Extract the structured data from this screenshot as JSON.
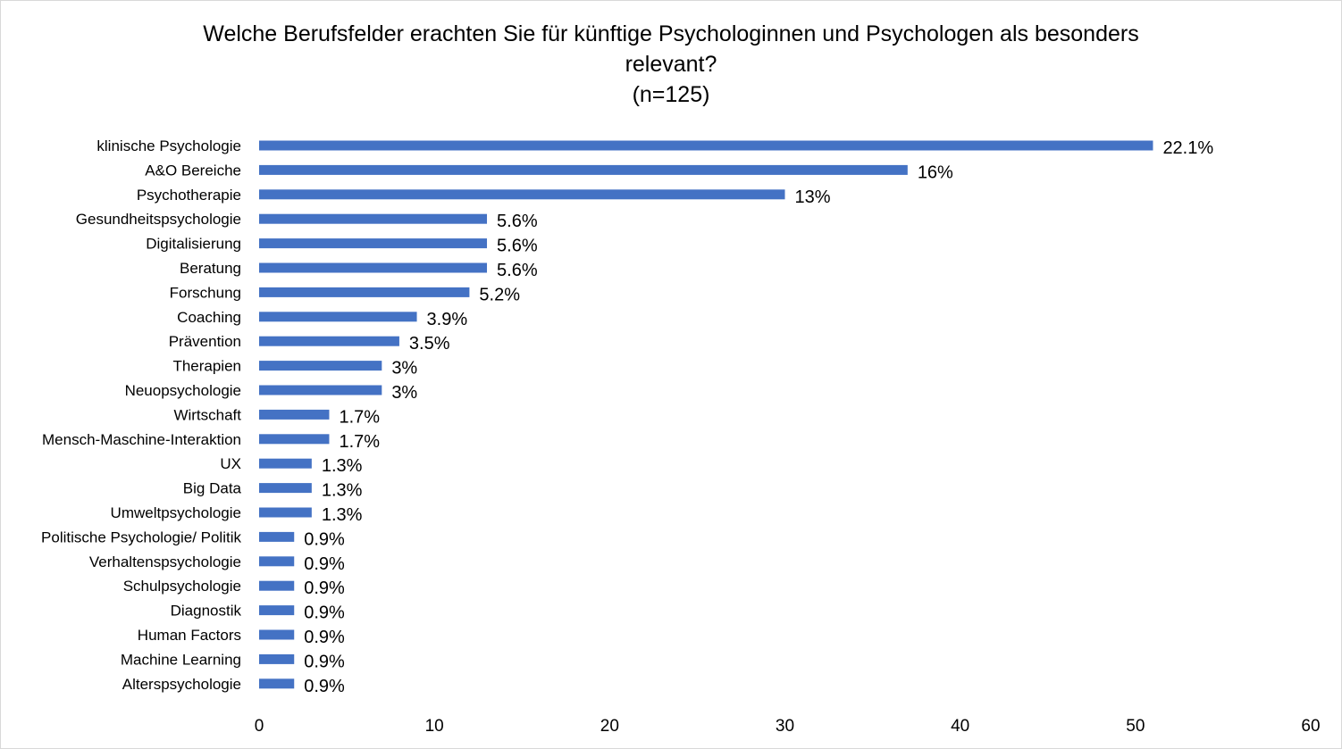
{
  "chart_data": {
    "type": "bar",
    "orientation": "horizontal",
    "title_lines": [
      "Welche Berufsfelder erachten Sie für künftige Psychologinnen und Psychologen als besonders",
      "relevant?",
      "(n=125)"
    ],
    "categories": [
      "klinische Psychologie",
      "A&O Bereiche",
      "Psychotherapie",
      "Gesundheitspsychologie",
      "Digitalisierung",
      "Beratung",
      "Forschung",
      "Coaching",
      "Prävention",
      "Therapien",
      "Neuopsychologie",
      "Wirtschaft",
      "Mensch-Maschine-Interaktion",
      "UX",
      "Big Data",
      "Umweltpsychologie",
      "Politische Psychologie/ Politik",
      "Verhaltenspsychologie",
      "Schulpsychologie",
      "Diagnostik",
      "Human Factors",
      "Machine Learning",
      "Alterspsychologie"
    ],
    "values": [
      51,
      37,
      30,
      13,
      13,
      13,
      12,
      9,
      8,
      7,
      7,
      4,
      4,
      3,
      3,
      3,
      2,
      2,
      2,
      2,
      2,
      2,
      2
    ],
    "data_labels": [
      "22.1%",
      "16%",
      "13%",
      "5.6%",
      "5.6%",
      "5.6%",
      "5.2%",
      "3.9%",
      "3.5%",
      "3%",
      "3%",
      "1.7%",
      "1.7%",
      "1.3%",
      "1.3%",
      "1.3%",
      "0.9%",
      "0.9%",
      "0.9%",
      "0.9%",
      "0.9%",
      "0.9%",
      "0.9%"
    ],
    "xlim": [
      0,
      60
    ],
    "xticks": [
      "0",
      "10",
      "20",
      "30",
      "40",
      "50",
      "60"
    ],
    "xlabel": "",
    "ylabel": "",
    "grid": false,
    "legend": "none",
    "bar_color": "#4472C4"
  }
}
